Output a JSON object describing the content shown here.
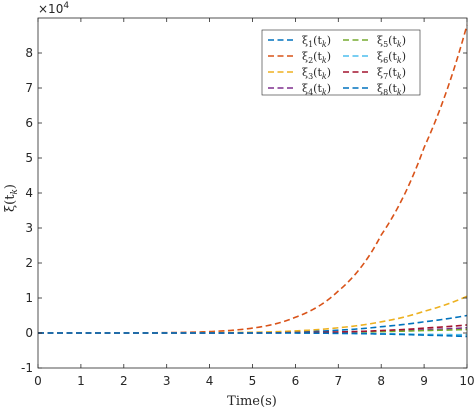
{
  "chart_data": {
    "type": "line",
    "xlabel": "Time(s)",
    "ylabel": "ξ(t_k)",
    "y_multiplier_label": "×10^4",
    "xlim": [
      0,
      10
    ],
    "ylim": [
      -1,
      9
    ],
    "xticks": [
      "0",
      "1",
      "2",
      "3",
      "4",
      "5",
      "6",
      "7",
      "8",
      "9",
      "10"
    ],
    "yticks": [
      "-1",
      "0",
      "1",
      "2",
      "3",
      "4",
      "5",
      "6",
      "7",
      "8"
    ],
    "grid": false,
    "legend_position": "top-right",
    "legend_columns": 2,
    "line_style": "dashed",
    "units_multiplier": 10000,
    "x": [
      0,
      1,
      2,
      3,
      4,
      5,
      6,
      7,
      8,
      9,
      10
    ],
    "series": [
      {
        "name": "ξ1(tk)",
        "color": "#0072BD",
        "values": [
          0,
          0,
          0,
          0,
          0,
          0.01,
          0.03,
          0.08,
          0.18,
          0.32,
          0.5
        ]
      },
      {
        "name": "ξ2(tk)",
        "color": "#D95319",
        "values": [
          0,
          0,
          0,
          0.01,
          0.04,
          0.14,
          0.45,
          1.2,
          2.8,
          5.3,
          8.8
        ]
      },
      {
        "name": "ξ3(tk)",
        "color": "#EDB120",
        "values": [
          0,
          0,
          0,
          0,
          0.01,
          0.02,
          0.06,
          0.15,
          0.32,
          0.62,
          1.05
        ]
      },
      {
        "name": "ξ4(tk)",
        "color": "#7E2F8E",
        "values": [
          0,
          0,
          0,
          0,
          0,
          0,
          0.01,
          0.02,
          0.05,
          0.09,
          0.15
        ]
      },
      {
        "name": "ξ5(tk)",
        "color": "#77AC30",
        "values": [
          0,
          0,
          0,
          0,
          0,
          0,
          0.01,
          0.02,
          0.04,
          0.07,
          0.1
        ]
      },
      {
        "name": "ξ6(tk)",
        "color": "#4DBEEE",
        "values": [
          0,
          0,
          0,
          0,
          0,
          0,
          0,
          -0.01,
          -0.02,
          -0.04,
          -0.05
        ]
      },
      {
        "name": "ξ7(tk)",
        "color": "#A2142F",
        "values": [
          0,
          0,
          0,
          0,
          0,
          0,
          0.01,
          0.03,
          0.07,
          0.14,
          0.23
        ]
      },
      {
        "name": "ξ8(tk)",
        "color": "#0072BD",
        "values": [
          0,
          0,
          0,
          0,
          0,
          0,
          0,
          -0.01,
          -0.03,
          -0.06,
          -0.1
        ]
      }
    ],
    "legend_entries": [
      {
        "sub": "1"
      },
      {
        "sub": "5"
      },
      {
        "sub": "2"
      },
      {
        "sub": "6"
      },
      {
        "sub": "3"
      },
      {
        "sub": "7"
      },
      {
        "sub": "4"
      },
      {
        "sub": "8"
      }
    ]
  }
}
